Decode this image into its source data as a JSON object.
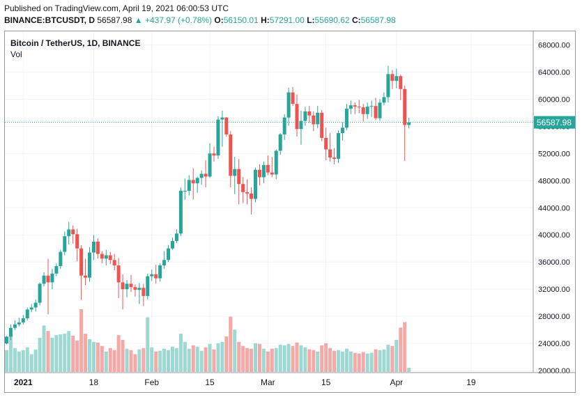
{
  "header": {
    "line1": "Published on TradingView.com, April 19, 2021 06:00:53 UTC",
    "symbol": "BINANCE:BTCUSDT, D",
    "last": "56587.98",
    "change": "▲ +437.97 (+0.78%)",
    "o_label": "O:",
    "o_val": "56150.01",
    "h_label": "H:",
    "h_val": "57291.00",
    "l_label": "L:",
    "l_val": "55690.62",
    "c_label": "C:",
    "c_val": "56587.98"
  },
  "legend": {
    "title": "Bitcoin / TetherUS, 1D, BINANCE",
    "vol": "Vol"
  },
  "colors": {
    "up": "#26a69a",
    "down": "#ef5350",
    "up_vol": "#9ed8d2",
    "down_vol": "#f4a9a7",
    "grid": "#f0f3fa"
  },
  "chart_data": {
    "type": "candlestick",
    "price_axis": {
      "ticks": [
        68000,
        64000,
        60000,
        56000,
        52000,
        48000,
        44000,
        40000,
        36000,
        32000,
        28000,
        24000,
        20000
      ],
      "range": [
        19700,
        70000
      ]
    },
    "last_price_label": "56587.98",
    "last_price": 56587.98,
    "x_ticks": [
      {
        "label": "2021",
        "index": 4
      },
      {
        "label": "18",
        "index": 21
      },
      {
        "label": "Feb",
        "index": 35
      },
      {
        "label": "15",
        "index": 49
      },
      {
        "label": "Mar",
        "index": 63
      },
      {
        "label": "15",
        "index": 77
      },
      {
        "label": "Apr",
        "index": 94
      },
      {
        "label": "19",
        "index": 112
      }
    ],
    "candles": [
      [
        24000,
        25100,
        23900,
        25000,
        3.2
      ],
      [
        25000,
        26800,
        24500,
        26300,
        5.8
      ],
      [
        26300,
        27400,
        26000,
        26800,
        3.5
      ],
      [
        26800,
        27800,
        26500,
        27100,
        3.0
      ],
      [
        27100,
        28200,
        26800,
        27700,
        3.2
      ],
      [
        27700,
        29300,
        27400,
        29000,
        3.6
      ],
      [
        29000,
        29800,
        28600,
        29300,
        2.6
      ],
      [
        29300,
        30500,
        28700,
        30000,
        3.3
      ],
      [
        30000,
        33000,
        29600,
        32800,
        5.0
      ],
      [
        32800,
        34500,
        32400,
        34000,
        6.8
      ],
      [
        34000,
        36500,
        28300,
        33000,
        6.0
      ],
      [
        33000,
        35000,
        32000,
        34300,
        5.0
      ],
      [
        34300,
        35800,
        33900,
        35400,
        5.4
      ],
      [
        35400,
        37800,
        35000,
        37500,
        5.5
      ],
      [
        37500,
        40500,
        37000,
        39800,
        5.6
      ],
      [
        39800,
        41900,
        38600,
        40800,
        6.0
      ],
      [
        40800,
        41400,
        38700,
        40100,
        5.3
      ],
      [
        40100,
        40900,
        36100,
        38000,
        4.6
      ],
      [
        38000,
        38500,
        30400,
        34000,
        9.2
      ],
      [
        34000,
        36500,
        32600,
        33700,
        5.6
      ],
      [
        33700,
        38200,
        33100,
        37400,
        4.8
      ],
      [
        37400,
        40000,
        36300,
        39000,
        4.4
      ],
      [
        39000,
        39500,
        36500,
        37200,
        4.3
      ],
      [
        37200,
        37600,
        35800,
        36500,
        3.8
      ],
      [
        36500,
        37800,
        35500,
        37000,
        3.0
      ],
      [
        37000,
        37500,
        35700,
        36300,
        3.5
      ],
      [
        36300,
        37200,
        34800,
        35500,
        3.2
      ],
      [
        35500,
        36600,
        30700,
        33000,
        5.4
      ],
      [
        33000,
        34200,
        29000,
        32000,
        4.7
      ],
      [
        32000,
        33300,
        30800,
        32800,
        3.4
      ],
      [
        32800,
        34100,
        31600,
        32300,
        3.2
      ],
      [
        32300,
        32700,
        30900,
        31900,
        2.6
      ],
      [
        31900,
        32900,
        29800,
        32200,
        3.3
      ],
      [
        32200,
        32800,
        29500,
        31000,
        3.5
      ],
      [
        31000,
        34300,
        30500,
        33900,
        8.0
      ],
      [
        33900,
        34900,
        33200,
        34200,
        3.6
      ],
      [
        34200,
        35600,
        32800,
        33600,
        3.0
      ],
      [
        33600,
        35800,
        33100,
        35500,
        3.1
      ],
      [
        35500,
        37600,
        35000,
        36300,
        3.4
      ],
      [
        36300,
        38500,
        36000,
        38000,
        3.2
      ],
      [
        38000,
        39600,
        37800,
        39100,
        3.7
      ],
      [
        39100,
        40800,
        38800,
        40200,
        3.5
      ],
      [
        40200,
        47000,
        39800,
        46500,
        5.6
      ],
      [
        46500,
        48300,
        45200,
        46500,
        4.4
      ],
      [
        46500,
        48800,
        45800,
        48100,
        3.4
      ],
      [
        48100,
        49800,
        45200,
        47600,
        3.9
      ],
      [
        47600,
        48600,
        46200,
        48400,
        3.7
      ],
      [
        48400,
        49500,
        47400,
        49000,
        3.1
      ],
      [
        49000,
        51000,
        47000,
        48600,
        3.6
      ],
      [
        48600,
        53500,
        48400,
        52000,
        4.1
      ],
      [
        52000,
        53000,
        50800,
        51700,
        3.3
      ],
      [
        51700,
        57500,
        51200,
        57000,
        4.2
      ],
      [
        57000,
        58300,
        53000,
        57300,
        4.4
      ],
      [
        57300,
        57400,
        54500,
        54800,
        5.2
      ],
      [
        54800,
        55300,
        47000,
        48700,
        8.1
      ],
      [
        48700,
        51500,
        46000,
        49700,
        6.2
      ],
      [
        49700,
        51200,
        44500,
        47500,
        4.4
      ],
      [
        47500,
        48500,
        44700,
        46300,
        3.8
      ],
      [
        46300,
        48200,
        44500,
        46100,
        3.5
      ],
      [
        46100,
        47000,
        43000,
        45300,
        3.4
      ],
      [
        45300,
        49900,
        44800,
        49600,
        4.2
      ],
      [
        49600,
        50400,
        47300,
        48500,
        4.1
      ],
      [
        48500,
        50800,
        47600,
        50300,
        3.4
      ],
      [
        50300,
        51700,
        48800,
        49200,
        3.0
      ],
      [
        49200,
        51500,
        48500,
        48900,
        3.4
      ],
      [
        48900,
        52600,
        48200,
        52400,
        3.5
      ],
      [
        52400,
        55000,
        51800,
        54800,
        4.0
      ],
      [
        54800,
        57800,
        54000,
        57300,
        3.9
      ],
      [
        57300,
        61700,
        56100,
        61000,
        4.1
      ],
      [
        61000,
        61800,
        59000,
        59300,
        3.8
      ],
      [
        59300,
        60700,
        54500,
        55600,
        4.3
      ],
      [
        55600,
        58300,
        53300,
        56800,
        3.9
      ],
      [
        56800,
        58900,
        56100,
        58200,
        3.6
      ],
      [
        58200,
        59000,
        56500,
        57600,
        3.3
      ],
      [
        57600,
        58200,
        55300,
        56300,
        3.2
      ],
      [
        56300,
        59000,
        55700,
        58000,
        3.0
      ],
      [
        58000,
        58400,
        53800,
        54300,
        3.9
      ],
      [
        54300,
        55800,
        51000,
        52600,
        4.2
      ],
      [
        52600,
        55000,
        50800,
        51400,
        3.5
      ],
      [
        51400,
        52800,
        50400,
        51200,
        3.1
      ],
      [
        51200,
        55400,
        50600,
        55000,
        3.2
      ],
      [
        55000,
        56600,
        53900,
        55800,
        3.0
      ],
      [
        55800,
        59300,
        55400,
        58600,
        3.4
      ],
      [
        58600,
        59800,
        57800,
        59100,
        3.0
      ],
      [
        59100,
        59500,
        57800,
        58900,
        2.8
      ],
      [
        58900,
        59900,
        57900,
        58800,
        2.7
      ],
      [
        58800,
        59300,
        56700,
        57800,
        2.9
      ],
      [
        57800,
        59500,
        57100,
        58900,
        2.7
      ],
      [
        58900,
        59800,
        57400,
        59000,
        2.8
      ],
      [
        59000,
        60200,
        56900,
        57200,
        3.3
      ],
      [
        57200,
        60000,
        56800,
        59500,
        3.2
      ],
      [
        59500,
        61000,
        59100,
        60300,
        3.3
      ],
      [
        60300,
        64900,
        59500,
        63700,
        4.0
      ],
      [
        63700,
        64300,
        61500,
        62700,
        3.8
      ],
      [
        62700,
        64500,
        61600,
        63400,
        4.7
      ],
      [
        63400,
        63600,
        59900,
        61500,
        6.5
      ],
      [
        61500,
        62000,
        50900,
        56200,
        7.3
      ],
      [
        56200,
        57300,
        55700,
        56588,
        0.6
      ]
    ]
  }
}
